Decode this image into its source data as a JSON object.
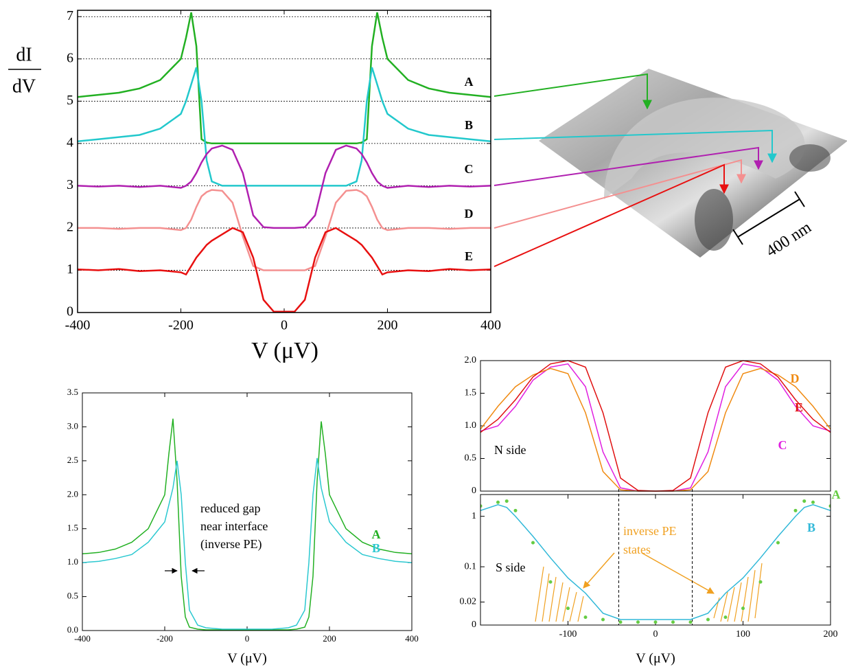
{
  "chart_data": [
    {
      "type": "line",
      "ylabel": [
        "dI",
        "dV"
      ],
      "xlabel": "V (μV)",
      "xlim": [
        -400,
        400
      ],
      "ylim": [
        0,
        7.15
      ],
      "xticks": [
        -400,
        -200,
        0,
        200,
        400
      ],
      "yticks": [
        0,
        1,
        2,
        3,
        4,
        5,
        6,
        7
      ],
      "grid": true,
      "x": [
        -400,
        -360,
        -320,
        -280,
        -240,
        -200,
        -190,
        -180,
        -170,
        -160,
        -150,
        -140,
        -120,
        -100,
        -80,
        -60,
        -40,
        -20,
        0,
        20,
        40,
        60,
        80,
        100,
        120,
        140,
        150,
        160,
        170,
        180,
        190,
        200,
        240,
        280,
        320,
        360,
        400
      ],
      "series": [
        {
          "name": "A",
          "color": "#22b022",
          "values": [
            5.1,
            5.15,
            5.2,
            5.3,
            5.5,
            6.0,
            6.5,
            7.1,
            6.3,
            4.1,
            4.02,
            4.0,
            4.0,
            4.0,
            4.0,
            4.0,
            4.0,
            4.0,
            4.0,
            4.0,
            4.0,
            4.0,
            4.0,
            4.0,
            4.0,
            4.0,
            4.02,
            4.1,
            6.3,
            7.1,
            6.5,
            6.0,
            5.5,
            5.3,
            5.2,
            5.15,
            5.1
          ]
        },
        {
          "name": "B",
          "color": "#22c8cc",
          "values": [
            4.05,
            4.1,
            4.15,
            4.2,
            4.35,
            4.7,
            5.0,
            5.4,
            5.8,
            5.0,
            3.6,
            3.1,
            3.0,
            3.0,
            3.0,
            3.0,
            3.0,
            3.0,
            3.0,
            3.0,
            3.0,
            3.0,
            3.0,
            3.0,
            3.0,
            3.1,
            3.6,
            5.0,
            5.8,
            5.4,
            5.0,
            4.7,
            4.35,
            4.2,
            4.15,
            4.1,
            4.05
          ]
        },
        {
          "name": "C",
          "color": "#b020b0",
          "values": [
            3.0,
            2.98,
            3.0,
            2.97,
            3.0,
            2.95,
            3.0,
            3.1,
            3.3,
            3.55,
            3.75,
            3.88,
            3.95,
            3.85,
            3.3,
            2.3,
            2.02,
            2.0,
            2.0,
            2.0,
            2.02,
            2.3,
            3.3,
            3.85,
            3.95,
            3.88,
            3.75,
            3.55,
            3.3,
            3.1,
            3.0,
            2.95,
            3.0,
            2.97,
            3.0,
            2.98,
            3.0
          ]
        },
        {
          "name": "D",
          "color": "#f49090",
          "values": [
            2.0,
            2.0,
            1.98,
            2.0,
            2.0,
            1.95,
            2.0,
            2.2,
            2.5,
            2.75,
            2.85,
            2.9,
            2.88,
            2.6,
            1.8,
            1.1,
            1.0,
            1.0,
            1.0,
            1.0,
            1.0,
            1.1,
            1.8,
            2.6,
            2.88,
            2.9,
            2.85,
            2.75,
            2.5,
            2.2,
            2.0,
            1.95,
            2.0,
            2.0,
            1.98,
            2.0,
            2.0
          ]
        },
        {
          "name": "E",
          "color": "#e81010",
          "values": [
            1.02,
            1.0,
            1.03,
            0.98,
            1.0,
            0.95,
            0.9,
            1.1,
            1.3,
            1.45,
            1.6,
            1.7,
            1.85,
            2.0,
            1.9,
            1.3,
            0.3,
            0.02,
            0.02,
            0.02,
            0.3,
            1.3,
            1.9,
            2.0,
            1.85,
            1.7,
            1.6,
            1.45,
            1.3,
            1.1,
            0.9,
            0.95,
            1.0,
            0.98,
            1.03,
            1.0,
            1.02
          ]
        }
      ]
    },
    {
      "type": "line",
      "xlabel": "V (μV)",
      "annotation": [
        "reduced gap",
        "near interface",
        "(inverse PE)"
      ],
      "xlim": [
        -400,
        400
      ],
      "ylim": [
        0,
        3.5
      ],
      "xticks": [
        -400,
        -200,
        0,
        200,
        400
      ],
      "yticks": [
        {
          "value": 0,
          "label": "0.0"
        },
        0.5,
        {
          "value": 1,
          "label": "1.0"
        },
        1.5,
        {
          "value": 2,
          "label": "2.0"
        },
        2.5,
        {
          "value": 3,
          "label": "3.0"
        },
        3.5
      ],
      "grid": false,
      "x": [
        -400,
        -360,
        -320,
        -280,
        -240,
        -200,
        -190,
        -180,
        -170,
        -160,
        -150,
        -140,
        -120,
        -100,
        -80,
        -60,
        -40,
        -20,
        0,
        20,
        40,
        60,
        80,
        100,
        120,
        140,
        150,
        160,
        170,
        180,
        190,
        200,
        240,
        280,
        320,
        360,
        400
      ],
      "series": [
        {
          "name": "A",
          "color": "#22b022",
          "values": [
            1.13,
            1.15,
            1.2,
            1.3,
            1.5,
            2.0,
            2.6,
            3.12,
            2.2,
            0.8,
            0.2,
            0.05,
            0.02,
            0.01,
            0.01,
            0.01,
            0.01,
            0.01,
            0.01,
            0.01,
            0.01,
            0.01,
            0.01,
            0.01,
            0.02,
            0.05,
            0.2,
            0.8,
            2.2,
            3.08,
            2.6,
            2.0,
            1.5,
            1.3,
            1.2,
            1.15,
            1.13
          ]
        },
        {
          "name": "B",
          "color": "#2ac8d0",
          "values": [
            1.0,
            1.02,
            1.06,
            1.12,
            1.3,
            1.6,
            1.85,
            2.1,
            2.5,
            2.0,
            1.0,
            0.3,
            0.08,
            0.04,
            0.03,
            0.02,
            0.02,
            0.02,
            0.02,
            0.02,
            0.02,
            0.02,
            0.03,
            0.04,
            0.08,
            0.3,
            1.0,
            2.0,
            2.54,
            2.1,
            1.85,
            1.6,
            1.3,
            1.12,
            1.06,
            1.02,
            1.0
          ]
        }
      ]
    },
    {
      "type": "line",
      "annotation": [
        "N side"
      ],
      "xlim": [
        -200,
        200
      ],
      "ylim": [
        0,
        2
      ],
      "yticks": [
        0,
        0.5,
        {
          "value": 1,
          "label": "1.0"
        },
        1.5,
        {
          "value": 2,
          "label": "2.0"
        }
      ],
      "grid": false,
      "x": [
        -200,
        -180,
        -160,
        -140,
        -120,
        -100,
        -80,
        -60,
        -40,
        -20,
        0,
        20,
        40,
        60,
        80,
        100,
        120,
        140,
        160,
        180,
        200
      ],
      "series": [
        {
          "name": "C",
          "color": "#e020e0",
          "values": [
            0.92,
            1.0,
            1.3,
            1.7,
            1.9,
            1.95,
            1.6,
            0.6,
            0.05,
            0,
            0,
            0,
            0.05,
            0.6,
            1.6,
            1.95,
            1.9,
            1.7,
            1.3,
            1.0,
            0.92
          ]
        },
        {
          "name": "D",
          "color": "#f08a10",
          "values": [
            0.95,
            1.3,
            1.6,
            1.78,
            1.88,
            1.8,
            1.2,
            0.3,
            0.02,
            0,
            0,
            0,
            0.02,
            0.3,
            1.2,
            1.8,
            1.88,
            1.78,
            1.6,
            1.3,
            0.95
          ]
        },
        {
          "name": "E",
          "color": "#e01010",
          "values": [
            0.9,
            1.1,
            1.4,
            1.75,
            1.95,
            2.0,
            1.9,
            1.2,
            0.2,
            0.01,
            0,
            0.01,
            0.2,
            1.2,
            1.9,
            2.0,
            1.95,
            1.75,
            1.4,
            1.1,
            0.9
          ]
        }
      ]
    },
    {
      "type": "line",
      "xlabel": "V (μV)",
      "annotation": [
        "inverse PE",
        "states",
        "S side"
      ],
      "yscale": "log",
      "vlines": [
        -42,
        42
      ],
      "xlim": [
        -200,
        200
      ],
      "ylim": [
        0.007,
        2.7
      ],
      "xticks": [
        -100,
        0,
        100,
        200
      ],
      "yticks": [
        {
          "value": 0.007,
          "label": "0"
        },
        0.02,
        0.1,
        1
      ],
      "grid": false,
      "x": [
        -200,
        -180,
        -170,
        -160,
        -140,
        -120,
        -100,
        -80,
        -60,
        -40,
        -20,
        0,
        20,
        40,
        60,
        80,
        100,
        120,
        140,
        160,
        170,
        180,
        200
      ],
      "series": [
        {
          "name": "A",
          "color": "#66cc44",
          "style": "dots",
          "values": [
            1.6,
            1.9,
            2.0,
            1.3,
            0.3,
            0.05,
            0.015,
            0.01,
            0.009,
            0.008,
            0.008,
            0.008,
            0.008,
            0.008,
            0.009,
            0.01,
            0.015,
            0.05,
            0.3,
            1.3,
            2.0,
            1.9,
            1.6
          ]
        },
        {
          "name": "B",
          "color": "#30b8d8",
          "values": [
            1.3,
            1.7,
            1.5,
            1.0,
            0.4,
            0.15,
            0.06,
            0.03,
            0.012,
            0.009,
            0.009,
            0.009,
            0.009,
            0.009,
            0.012,
            0.03,
            0.06,
            0.15,
            0.4,
            1.0,
            1.5,
            1.7,
            1.3
          ]
        }
      ]
    }
  ],
  "image": {
    "scale_label": "400 nm"
  }
}
